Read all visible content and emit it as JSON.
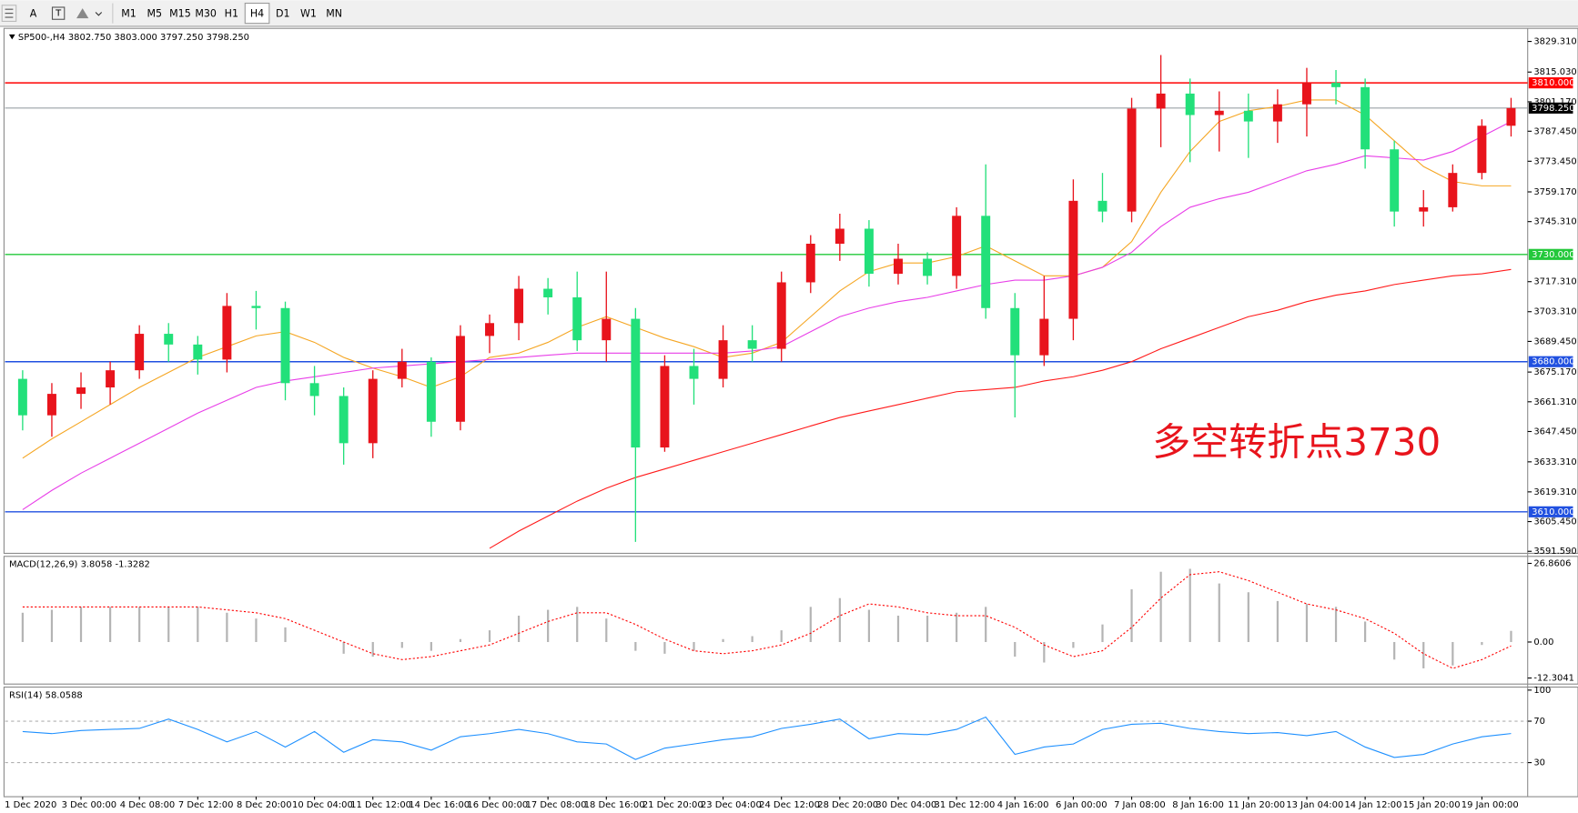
{
  "toolbar": {
    "font_button": "A",
    "timeframes": [
      "M1",
      "M5",
      "M15",
      "M30",
      "H1",
      "H4",
      "D1",
      "W1",
      "MN"
    ],
    "active": "H4"
  },
  "chart_data": [
    {
      "type": "candlestick",
      "title": "SP500-,H4  3802.750 3803.000 3797.250 3798.250",
      "annotation": "多空转折点3730",
      "annotation_color": "#e8141c",
      "up_color": "#e8141c",
      "down_color": "#22e07a",
      "categories": [
        "1 Dec 2020",
        null,
        "3 Dec 00:00",
        null,
        "4 Dec 08:00",
        null,
        "7 Dec 12:00",
        null,
        "8 Dec 20:00",
        null,
        "10 Dec 04:00",
        null,
        "11 Dec 12:00",
        null,
        "14 Dec 16:00",
        null,
        "16 Dec 00:00",
        null,
        "17 Dec 08:00",
        null,
        "18 Dec 16:00",
        null,
        "21 Dec 20:00",
        null,
        "23 Dec 04:00",
        null,
        "24 Dec 12:00",
        null,
        "28 Dec 20:00",
        null,
        "30 Dec 04:00",
        null,
        "31 Dec 12:00",
        null,
        "4 Jan 16:00",
        null,
        "6 Jan 00:00",
        null,
        "7 Jan 08:00",
        null,
        "8 Jan 16:00",
        null,
        "11 Jan 20:00",
        null,
        "13 Jan 04:00",
        null,
        "14 Jan 12:00",
        null,
        "15 Jan 20:00",
        null,
        "19 Jan 00:00",
        null
      ],
      "open": [
        3672,
        3655,
        3665,
        3668,
        3676,
        3693,
        3688,
        3681,
        3706,
        3705,
        3670,
        3664,
        3642,
        3672,
        3680,
        3652,
        3692,
        3698,
        3714,
        3710,
        3690,
        3700,
        3640,
        3678,
        3672,
        3690,
        3686,
        3717,
        3735,
        3742,
        3721,
        3728,
        3720,
        3748,
        3705,
        3683,
        3700,
        3755,
        3750,
        3798,
        3805,
        3795,
        3797,
        3792,
        3800,
        3810,
        3808,
        3779,
        3750,
        3752,
        3768,
        3790
      ],
      "high": [
        3676,
        3670,
        3675,
        3680,
        3697,
        3698,
        3692,
        3712,
        3713,
        3708,
        3678,
        3668,
        3676,
        3686,
        3682,
        3697,
        3702,
        3720,
        3719,
        3722,
        3722,
        3705,
        3683,
        3686,
        3697,
        3697,
        3722,
        3739,
        3749,
        3746,
        3735,
        3731,
        3752,
        3772,
        3712,
        3720,
        3765,
        3768,
        3803,
        3823,
        3812,
        3806,
        3805,
        3807,
        3817,
        3816,
        3812,
        3783,
        3760,
        3772,
        3793,
        3803
      ],
      "low": [
        3648,
        3645,
        3658,
        3660,
        3672,
        3680,
        3674,
        3675,
        3695,
        3662,
        3655,
        3632,
        3635,
        3668,
        3645,
        3648,
        3684,
        3690,
        3702,
        3685,
        3680,
        3596,
        3638,
        3660,
        3668,
        3680,
        3680,
        3712,
        3727,
        3715,
        3716,
        3716,
        3714,
        3700,
        3654,
        3678,
        3690,
        3745,
        3745,
        3780,
        3773,
        3778,
        3775,
        3782,
        3785,
        3800,
        3770,
        3743,
        3743,
        3750,
        3765,
        3785
      ],
      "close": [
        3655,
        3665,
        3668,
        3676,
        3693,
        3688,
        3681,
        3706,
        3705,
        3670,
        3664,
        3642,
        3672,
        3680,
        3652,
        3692,
        3698,
        3714,
        3710,
        3690,
        3700,
        3640,
        3678,
        3672,
        3690,
        3686,
        3717,
        3735,
        3742,
        3721,
        3728,
        3720,
        3748,
        3705,
        3683,
        3700,
        3755,
        3750,
        3798,
        3805,
        3795,
        3797,
        3792,
        3800,
        3810,
        3808,
        3779,
        3750,
        3752,
        3768,
        3790,
        3798.25
      ],
      "series": [
        {
          "color": "#f5a623",
          "values": [
            3635,
            3644,
            3652,
            3660,
            3668,
            3675,
            3682,
            3687,
            3692,
            3694,
            3689,
            3682,
            3677,
            3673,
            3668,
            3673,
            3682,
            3684,
            3689,
            3696,
            3701,
            3696,
            3691,
            3687,
            3682,
            3684,
            3689,
            3701,
            3713,
            3722,
            3726,
            3726,
            3729,
            3734,
            3727,
            3720,
            3720,
            3724,
            3736,
            3759,
            3778,
            3792,
            3797,
            3799,
            3802,
            3802,
            3795,
            3783,
            3771,
            3764,
            3762,
            3762
          ]
        },
        {
          "color": "#e83ee8",
          "values": [
            3611,
            3620,
            3628,
            3635,
            3642,
            3649,
            3656,
            3662,
            3668,
            3671,
            3673,
            3675,
            3677,
            3678,
            3679,
            3680,
            3681,
            3682,
            3683,
            3684,
            3684,
            3684,
            3684,
            3684,
            3684,
            3685,
            3687,
            3694,
            3701,
            3705,
            3708,
            3710,
            3713,
            3716,
            3718,
            3718,
            3720,
            3724,
            3731,
            3743,
            3752,
            3756,
            3759,
            3764,
            3769,
            3772,
            3776,
            3775,
            3774,
            3778,
            3785,
            3792
          ]
        },
        {
          "color": "#ff1a1a",
          "values": [
            null,
            null,
            null,
            null,
            null,
            null,
            null,
            null,
            null,
            null,
            null,
            null,
            null,
            null,
            null,
            null,
            3593,
            3601,
            3608,
            3615,
            3621,
            3626,
            3630,
            3634,
            3638,
            3642,
            3646,
            3650,
            3654,
            3657,
            3660,
            3663,
            3666,
            3667,
            3668,
            3671,
            3673,
            3676,
            3680,
            3686,
            3691,
            3696,
            3701,
            3704,
            3708,
            3711,
            3713,
            3716,
            3718,
            3720,
            3721,
            3723
          ]
        }
      ],
      "ylim": [
        3591.59,
        3829.31
      ],
      "yticks": [
        {
          "value": 3829.31,
          "label": "3829.310"
        },
        {
          "value": 3815.03,
          "label": "3815.030"
        },
        {
          "value": 3801.17,
          "label": "3801.170"
        },
        {
          "value": 3787.45,
          "label": "3787.450"
        },
        {
          "value": 3773.45,
          "label": "3773.450"
        },
        {
          "value": 3759.17,
          "label": "3759.170"
        },
        {
          "value": 3745.31,
          "label": "3745.310"
        },
        {
          "value": 3717.31,
          "label": "3717.310"
        },
        {
          "value": 3703.31,
          "label": "3703.310"
        },
        {
          "value": 3689.45,
          "label": "3689.450"
        },
        {
          "value": 3675.17,
          "label": "3675.170"
        },
        {
          "value": 3661.31,
          "label": "3661.310"
        },
        {
          "value": 3647.45,
          "label": "3647.450"
        },
        {
          "value": 3633.31,
          "label": "3633.310"
        },
        {
          "value": 3619.31,
          "label": "3619.310"
        },
        {
          "value": 3605.45,
          "label": "3605.450"
        },
        {
          "value": 3591.59,
          "label": "3591.590"
        }
      ],
      "levels": [
        {
          "value": 3810,
          "label": "3810.000",
          "color": "#ff0000"
        },
        {
          "value": 3730,
          "label": "3730.000",
          "color": "#22c83a"
        },
        {
          "value": 3680,
          "label": "3680.000",
          "color": "#2050e0"
        },
        {
          "value": 3610,
          "label": "3610.000",
          "color": "#2050e0"
        }
      ],
      "current_price": {
        "value": 3798.25,
        "label": "3798.250"
      }
    },
    {
      "type": "macd",
      "title": "MACD(12,26,9) 3.8058 -1.3282",
      "ylim": [
        -12.3041,
        26.8606
      ],
      "yticks": [
        26.8606,
        {
          "value": 0,
          "label": "0.00"
        },
        -12.3041
      ],
      "histogram": {
        "color": "#b4b4b4",
        "values": [
          10,
          11,
          12,
          12,
          12,
          12,
          12,
          10,
          8,
          5,
          0,
          -4,
          -5,
          -2,
          -3,
          1,
          4,
          9,
          11,
          12,
          8,
          -3,
          -4,
          -3,
          1,
          2,
          4,
          12,
          15,
          11,
          9,
          9,
          10,
          12,
          -5,
          -7,
          -2,
          6,
          18,
          24,
          25,
          20,
          17,
          14,
          13,
          12,
          7,
          -6,
          -9,
          -8,
          -1,
          3.8058
        ]
      },
      "signal": {
        "color": "#ff0000",
        "values": [
          12,
          12,
          12,
          12,
          12,
          12,
          12,
          11,
          10,
          8,
          4,
          0,
          -4,
          -6,
          -5,
          -3,
          -1,
          3,
          7,
          10,
          10,
          6,
          1,
          -3,
          -4,
          -3,
          -1,
          3,
          9,
          13,
          12,
          10,
          9,
          9,
          5,
          -1,
          -5,
          -3,
          5,
          15,
          23,
          24,
          21,
          17,
          13,
          11,
          8,
          3,
          -4,
          -9,
          -6,
          -1.3282
        ]
      }
    },
    {
      "type": "line",
      "title": "RSI(14) 58.0588",
      "ylim": [
        0,
        100
      ],
      "yticks": [
        100,
        70,
        30
      ],
      "grid": true,
      "series": [
        {
          "color": "#1e90ff",
          "values": [
            60,
            58,
            61,
            62,
            63,
            72,
            62,
            50,
            60,
            45,
            60,
            40,
            52,
            50,
            42,
            55,
            58,
            62,
            58,
            50,
            48,
            33,
            44,
            48,
            52,
            55,
            63,
            67,
            72,
            53,
            58,
            57,
            62,
            74,
            38,
            45,
            48,
            62,
            67,
            68,
            63,
            60,
            58,
            59,
            56,
            60,
            45,
            35,
            38,
            48,
            55,
            58.0588
          ]
        }
      ]
    }
  ]
}
